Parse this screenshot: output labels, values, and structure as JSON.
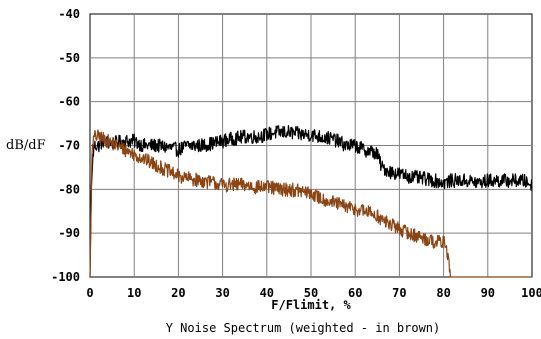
{
  "chart_data": {
    "type": "line",
    "title": "Y Noise Spectrum (weighted - in brown)",
    "xlabel": "F/Flimit, %",
    "ylabel": "dB/dF",
    "xlim": [
      0,
      100
    ],
    "ylim": [
      -100,
      -40
    ],
    "xticks": [
      0,
      10,
      20,
      30,
      40,
      50,
      60,
      70,
      80,
      90,
      100
    ],
    "yticks": [
      -40,
      -50,
      -60,
      -70,
      -80,
      -90,
      -100
    ],
    "grid": true,
    "series": [
      {
        "color": "#000000",
        "x": [
          0,
          0.3,
          0.7,
          1,
          2,
          3,
          5,
          8,
          10,
          12,
          15,
          18,
          20,
          22,
          25,
          28,
          30,
          32,
          35,
          38,
          40,
          42,
          45,
          48,
          50,
          52,
          55,
          58,
          60,
          62,
          64,
          65,
          66,
          68,
          70,
          72,
          75,
          78,
          80,
          82,
          85,
          88,
          90,
          92,
          95,
          98,
          100
        ],
        "y": [
          -100,
          -80,
          -72,
          -70,
          -70,
          -69,
          -69.5,
          -69,
          -69,
          -70,
          -70,
          -70.5,
          -71,
          -70,
          -70,
          -69.5,
          -69,
          -68.5,
          -68,
          -68,
          -67.5,
          -67,
          -67,
          -67.5,
          -67.5,
          -68,
          -68.5,
          -70,
          -70,
          -71,
          -71.5,
          -72,
          -75,
          -76,
          -76.5,
          -77,
          -77.5,
          -78,
          -78.5,
          -78,
          -78,
          -78.5,
          -78,
          -78,
          -78,
          -78,
          -79
        ]
      },
      {
        "color": "#8b4513",
        "x": [
          0,
          0.3,
          0.5,
          1,
          2,
          4,
          6,
          8,
          10,
          12,
          15,
          18,
          20,
          22,
          25,
          28,
          30,
          33,
          35,
          38,
          40,
          43,
          45,
          48,
          50,
          52,
          55,
          58,
          60,
          62,
          64,
          65,
          66,
          68,
          70,
          72,
          75,
          78,
          80,
          80.5,
          81,
          81.5,
          100
        ],
        "y": [
          -100,
          -80,
          -70,
          -68,
          -68,
          -69,
          -70,
          -71,
          -72,
          -73,
          -74.5,
          -76,
          -77,
          -77.5,
          -78,
          -78.5,
          -79,
          -79,
          -79,
          -79.5,
          -79.5,
          -80,
          -80,
          -80.5,
          -81,
          -82,
          -83,
          -84,
          -84.5,
          -85,
          -85.5,
          -86,
          -87,
          -88,
          -89,
          -90,
          -91,
          -92,
          -92,
          -93,
          -95,
          -100,
          -100
        ]
      }
    ]
  }
}
